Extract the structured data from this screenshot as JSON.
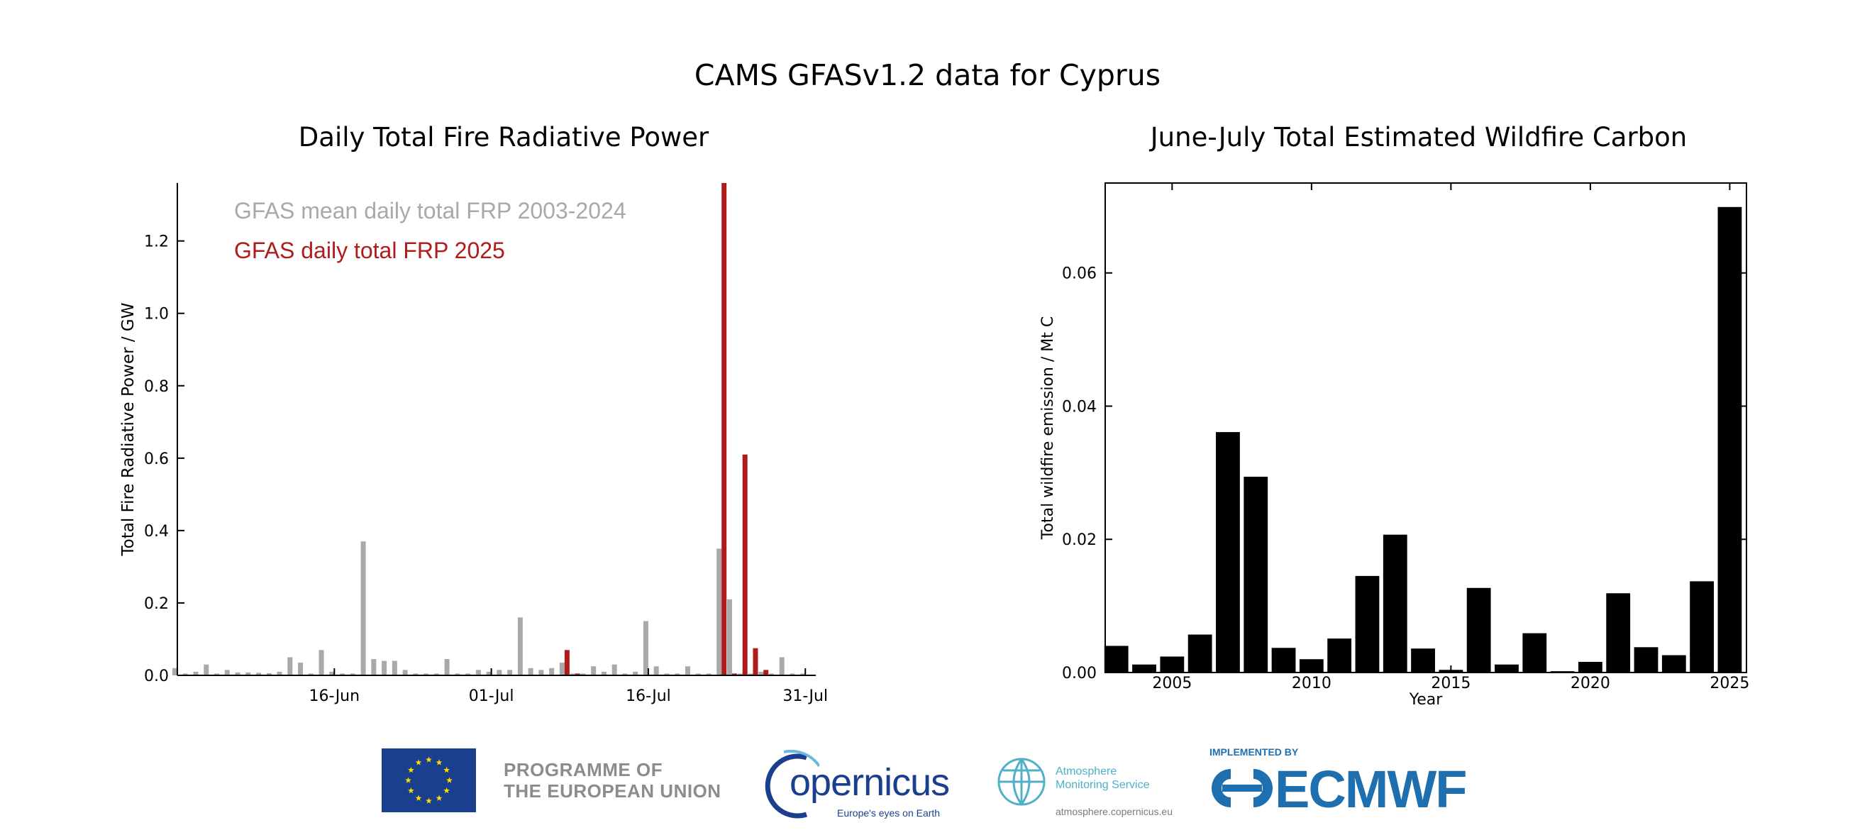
{
  "page_title": "CAMS GFASv1.2 data for Cyprus",
  "chart_data": [
    {
      "type": "bar",
      "title": "Daily Total Fire Radiative Power",
      "xlabel": "",
      "ylabel": "Total Fire Radiative Power / GW",
      "ylim": [
        0,
        1.36
      ],
      "xlim": [
        1,
        62
      ],
      "x_ticks": [
        {
          "day": 16,
          "label": "16-Jun"
        },
        {
          "day": 31,
          "label": "01-Jul"
        },
        {
          "day": 46,
          "label": "16-Jul"
        },
        {
          "day": 61,
          "label": "31-Jul"
        }
      ],
      "y_ticks": [
        "0.0",
        "0.2",
        "0.4",
        "0.6",
        "0.8",
        "1.0",
        "1.2"
      ],
      "y_tick_values": [
        0,
        0.2,
        0.4,
        0.6,
        0.8,
        1.0,
        1.2
      ],
      "legend": "top-left",
      "series": [
        {
          "name": "GFAS mean daily total FRP 2003-2024",
          "color": "#a9a9a9",
          "days": [
            1,
            2,
            3,
            4,
            5,
            6,
            7,
            8,
            9,
            10,
            11,
            12,
            13,
            14,
            15,
            16,
            17,
            18,
            19,
            20,
            21,
            22,
            23,
            24,
            25,
            26,
            27,
            28,
            29,
            30,
            31,
            32,
            33,
            34,
            35,
            36,
            37,
            38,
            39,
            40,
            41,
            42,
            43,
            44,
            45,
            46,
            47,
            48,
            49,
            50,
            51,
            52,
            53,
            54,
            55,
            56,
            57,
            58,
            59,
            60,
            61
          ],
          "values": [
            0.02,
            0.005,
            0.01,
            0.03,
            0.005,
            0.015,
            0.008,
            0.008,
            0.007,
            0.006,
            0.01,
            0.05,
            0.035,
            0.005,
            0.07,
            0.01,
            0.005,
            0.005,
            0.37,
            0.045,
            0.04,
            0.04,
            0.015,
            0.005,
            0.005,
            0.005,
            0.045,
            0.005,
            0.005,
            0.015,
            0.01,
            0.015,
            0.015,
            0.16,
            0.02,
            0.015,
            0.02,
            0.035,
            0.005,
            0.005,
            0.025,
            0.01,
            0.03,
            0.005,
            0.01,
            0.15,
            0.025,
            0.005,
            0.005,
            0.025,
            0.005,
            0.005,
            0.35,
            0.21,
            0.005,
            0.005,
            0.01,
            0.005,
            0.05,
            0.005,
            0.005
          ]
        },
        {
          "name": "GFAS daily total FRP 2025",
          "color": "#b01c1c",
          "days": [
            38,
            39,
            53,
            54,
            55,
            56,
            57
          ],
          "values": [
            0.07,
            0.005,
            1.36,
            0.005,
            0.61,
            0.075,
            0.015
          ]
        }
      ]
    },
    {
      "type": "bar",
      "title": "June-July Total Estimated Wildfire Carbon",
      "xlabel": "Year",
      "ylabel": "Total wildfire emission / Mt C",
      "ylim": [
        0,
        0.0735
      ],
      "xlim": [
        2002.6,
        2025.6
      ],
      "x_ticks": [
        "2005",
        "2010",
        "2015",
        "2020",
        "2025"
      ],
      "x_tick_values": [
        2005,
        2010,
        2015,
        2020,
        2025
      ],
      "y_ticks": [
        "0.00",
        "0.02",
        "0.04",
        "0.06"
      ],
      "y_tick_values": [
        0,
        0.02,
        0.04,
        0.06
      ],
      "color": "#000000",
      "categories": [
        2003,
        2004,
        2005,
        2006,
        2007,
        2008,
        2009,
        2010,
        2011,
        2012,
        2013,
        2014,
        2015,
        2016,
        2017,
        2018,
        2019,
        2020,
        2021,
        2022,
        2023,
        2024,
        2025
      ],
      "values": [
        0.004,
        0.0012,
        0.0024,
        0.0057,
        0.0361,
        0.0294,
        0.0037,
        0.002,
        0.0051,
        0.0145,
        0.0207,
        0.0036,
        0.0004,
        0.0127,
        0.0012,
        0.0059,
        0.0002,
        0.0016,
        0.0119,
        0.0038,
        0.0026,
        0.0137,
        0.0699
      ]
    }
  ],
  "footer": {
    "eu_text_line1": "PROGRAMME OF",
    "eu_text_line2": "THE EUROPEAN UNION",
    "copernicus_word": "opernicus",
    "copernicus_tagline": "Europe's eyes on Earth",
    "ams_line1": "Atmosphere",
    "ams_line2": "Monitoring Service",
    "ams_url": "atmosphere.copernicus.eu",
    "ecmwf_implemented": "IMPLEMENTED BY",
    "ecmwf_word": "ECMWF",
    "eu_blue": "#1a3f8f",
    "eu_star": "#ffdd00",
    "copernicus_blue": "#1b3f8f",
    "ams_teal": "#4fb0c6",
    "ecmwf_blue": "#1d6fb0"
  }
}
